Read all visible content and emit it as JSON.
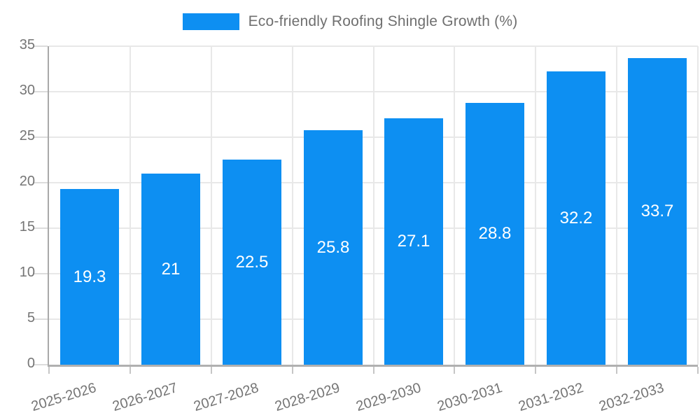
{
  "chart_data": {
    "type": "bar",
    "title": "",
    "legend": {
      "label": "Eco-friendly Roofing Shingle Growth (%)",
      "position": "top"
    },
    "categories": [
      "2025-2026",
      "2026-2027",
      "2027-2028",
      "2028-2029",
      "2029-2030",
      "2030-2031",
      "2031-2032",
      "2032-2033"
    ],
    "values": [
      19.3,
      21,
      22.5,
      25.8,
      27.1,
      28.8,
      32.2,
      33.7
    ],
    "value_labels": [
      "19.3",
      "21",
      "22.5",
      "25.8",
      "27.1",
      "28.8",
      "32.2",
      "33.7"
    ],
    "xlabel": "",
    "ylabel": "",
    "ylim": [
      0,
      35
    ],
    "yticks": [
      0,
      5,
      10,
      15,
      20,
      25,
      30,
      35
    ],
    "grid": true,
    "legend_position": "top-center",
    "colors": {
      "bar": "#0d8ff2",
      "value_label": "#ffffff",
      "axis_text": "#757575",
      "legend_text": "#6f6f6f",
      "gridline": "#e8e8e8",
      "axis_line": "#aaaaaa",
      "background": "#ffffff"
    }
  }
}
